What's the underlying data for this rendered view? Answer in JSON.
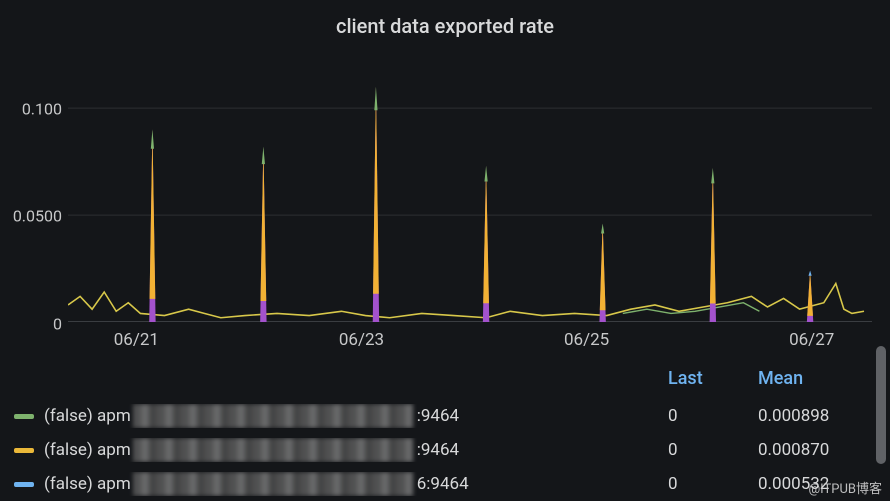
{
  "title": "client data exported rate",
  "background_color": "#141619",
  "text_color": "#c7c8c9",
  "watermark": "@ITPUB博客",
  "chart": {
    "type": "line",
    "ylim": [
      0,
      0.13
    ],
    "yticks": [
      {
        "value": 0,
        "label": "0"
      },
      {
        "value": 0.05,
        "label": "0.0500"
      },
      {
        "value": 0.1,
        "label": "0.100"
      }
    ],
    "x_range_days": 7.5,
    "xticks": [
      {
        "pos": 0.085,
        "label": "06/21"
      },
      {
        "pos": 0.365,
        "label": "06/23"
      },
      {
        "pos": 0.645,
        "label": "06/25"
      },
      {
        "pos": 0.925,
        "label": "06/27"
      }
    ],
    "grid_color": "#2c2f33",
    "axis_color": "#3a3d41",
    "series_spikes": [
      {
        "x": 0.105,
        "h": 0.09,
        "top": "#7eb26d",
        "mid": "#f2b134",
        "bot": "#a352cc"
      },
      {
        "x": 0.243,
        "h": 0.082,
        "top": "#7eb26d",
        "mid": "#f2b134",
        "bot": "#a352cc"
      },
      {
        "x": 0.383,
        "h": 0.11,
        "top": "#7eb26d",
        "mid": "#f2b134",
        "bot": "#a352cc"
      },
      {
        "x": 0.52,
        "h": 0.073,
        "top": "#7eb26d",
        "mid": "#f2b134",
        "bot": "#a352cc"
      },
      {
        "x": 0.665,
        "h": 0.046,
        "top": "#7eb26d",
        "mid": "#f2b134",
        "bot": "#a352cc"
      },
      {
        "x": 0.802,
        "h": 0.072,
        "top": "#7eb26d",
        "mid": "#f2b134",
        "bot": "#a352cc"
      },
      {
        "x": 0.923,
        "h": 0.024,
        "top": "#6fb3f0",
        "mid": "#f2b134",
        "bot": "#a352cc"
      }
    ],
    "noise_color": "#d8c84a",
    "noise_points": [
      [
        0.0,
        0.008
      ],
      [
        0.015,
        0.012
      ],
      [
        0.03,
        0.006
      ],
      [
        0.045,
        0.014
      ],
      [
        0.06,
        0.005
      ],
      [
        0.075,
        0.009
      ],
      [
        0.09,
        0.004
      ],
      [
        0.12,
        0.003
      ],
      [
        0.15,
        0.006
      ],
      [
        0.17,
        0.004
      ],
      [
        0.19,
        0.002
      ],
      [
        0.22,
        0.003
      ],
      [
        0.26,
        0.004
      ],
      [
        0.3,
        0.003
      ],
      [
        0.34,
        0.005
      ],
      [
        0.37,
        0.003
      ],
      [
        0.4,
        0.002
      ],
      [
        0.44,
        0.004
      ],
      [
        0.48,
        0.003
      ],
      [
        0.52,
        0.002
      ],
      [
        0.55,
        0.005
      ],
      [
        0.59,
        0.003
      ],
      [
        0.63,
        0.004
      ],
      [
        0.67,
        0.003
      ],
      [
        0.7,
        0.006
      ],
      [
        0.73,
        0.008
      ],
      [
        0.76,
        0.005
      ],
      [
        0.79,
        0.007
      ],
      [
        0.82,
        0.009
      ],
      [
        0.85,
        0.012
      ],
      [
        0.87,
        0.007
      ],
      [
        0.89,
        0.011
      ],
      [
        0.91,
        0.006
      ],
      [
        0.94,
        0.009
      ],
      [
        0.955,
        0.018
      ],
      [
        0.965,
        0.006
      ],
      [
        0.975,
        0.004
      ],
      [
        0.99,
        0.005
      ]
    ],
    "noise2_color": "#7eb26d",
    "noise2_points": [
      [
        0.69,
        0.004
      ],
      [
        0.72,
        0.006
      ],
      [
        0.75,
        0.004
      ],
      [
        0.78,
        0.005
      ],
      [
        0.81,
        0.007
      ],
      [
        0.84,
        0.009
      ],
      [
        0.86,
        0.005
      ]
    ]
  },
  "legend": {
    "header": {
      "last": "Last",
      "mean": "Mean"
    },
    "header_color": "#6fb3f0",
    "rows": [
      {
        "color": "#7eb26d",
        "prefix": "(false) apm",
        "suffix": ":9464",
        "redact_w": 280,
        "last": "0",
        "mean": "0.000898"
      },
      {
        "color": "#eab839",
        "prefix": "(false) apm",
        "suffix": ":9464",
        "redact_w": 280,
        "last": "0",
        "mean": "0.000870"
      },
      {
        "color": "#6fb3f0",
        "prefix": "(false) apm",
        "suffix": "6:9464",
        "redact_w": 280,
        "last": "0",
        "mean": "0.000532"
      }
    ]
  }
}
